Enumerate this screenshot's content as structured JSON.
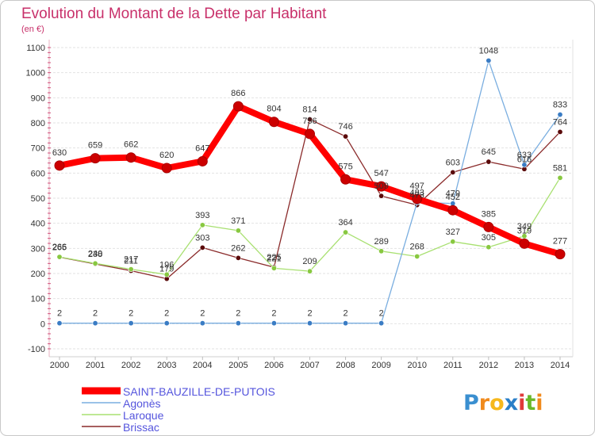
{
  "logo_text": "Proxiti",
  "logo_colors": [
    "#3a8fd0",
    "#f08a1c",
    "#f6b81c",
    "#2a7fc8",
    "#e03a3a",
    "#6ab82a",
    "#f08a1c"
  ],
  "chart_data": {
    "type": "line",
    "title": "Evolution du Montant de la Dette par Habitant",
    "subtitle": "(en €)",
    "x": [
      "2000",
      "2001",
      "2002",
      "2003",
      "2004",
      "2005",
      "2006",
      "2007",
      "2008",
      "2009",
      "2010",
      "2011",
      "2012",
      "2013",
      "2014"
    ],
    "ylim": [
      -100,
      1100
    ],
    "yticks": [
      -100,
      0,
      100,
      200,
      300,
      400,
      500,
      600,
      700,
      800,
      900,
      1000,
      1100
    ],
    "grid": true,
    "legend": "bottom-left",
    "series": [
      {
        "name": "SAINT-BAUZILLE-DE-PUTOIS",
        "line_color": "#ff0000",
        "point_color": "#cc0000",
        "values": [
          630,
          659,
          662,
          620,
          647,
          866,
          804,
          756,
          575,
          547,
          497,
          452,
          385,
          319,
          277
        ]
      },
      {
        "name": "Agonès",
        "line_color": "#7aaee0",
        "point_color": "#3a7cc4",
        "values": [
          2,
          2,
          2,
          2,
          2,
          2,
          2,
          2,
          2,
          2,
          483,
          479,
          1048,
          633,
          833
        ]
      },
      {
        "name": "Laroque",
        "line_color": "#a8e070",
        "point_color": "#88c840",
        "values": [
          266,
          240,
          217,
          196,
          393,
          371,
          221,
          209,
          364,
          289,
          268,
          327,
          305,
          349,
          581
        ]
      },
      {
        "name": "Brissac",
        "line_color": "#8a2a2a",
        "point_color": "#5a0a0a",
        "values": [
          265,
          238,
          211,
          179,
          303,
          262,
          225,
          814,
          746,
          509,
          473,
          603,
          645,
          616,
          764
        ]
      }
    ]
  }
}
